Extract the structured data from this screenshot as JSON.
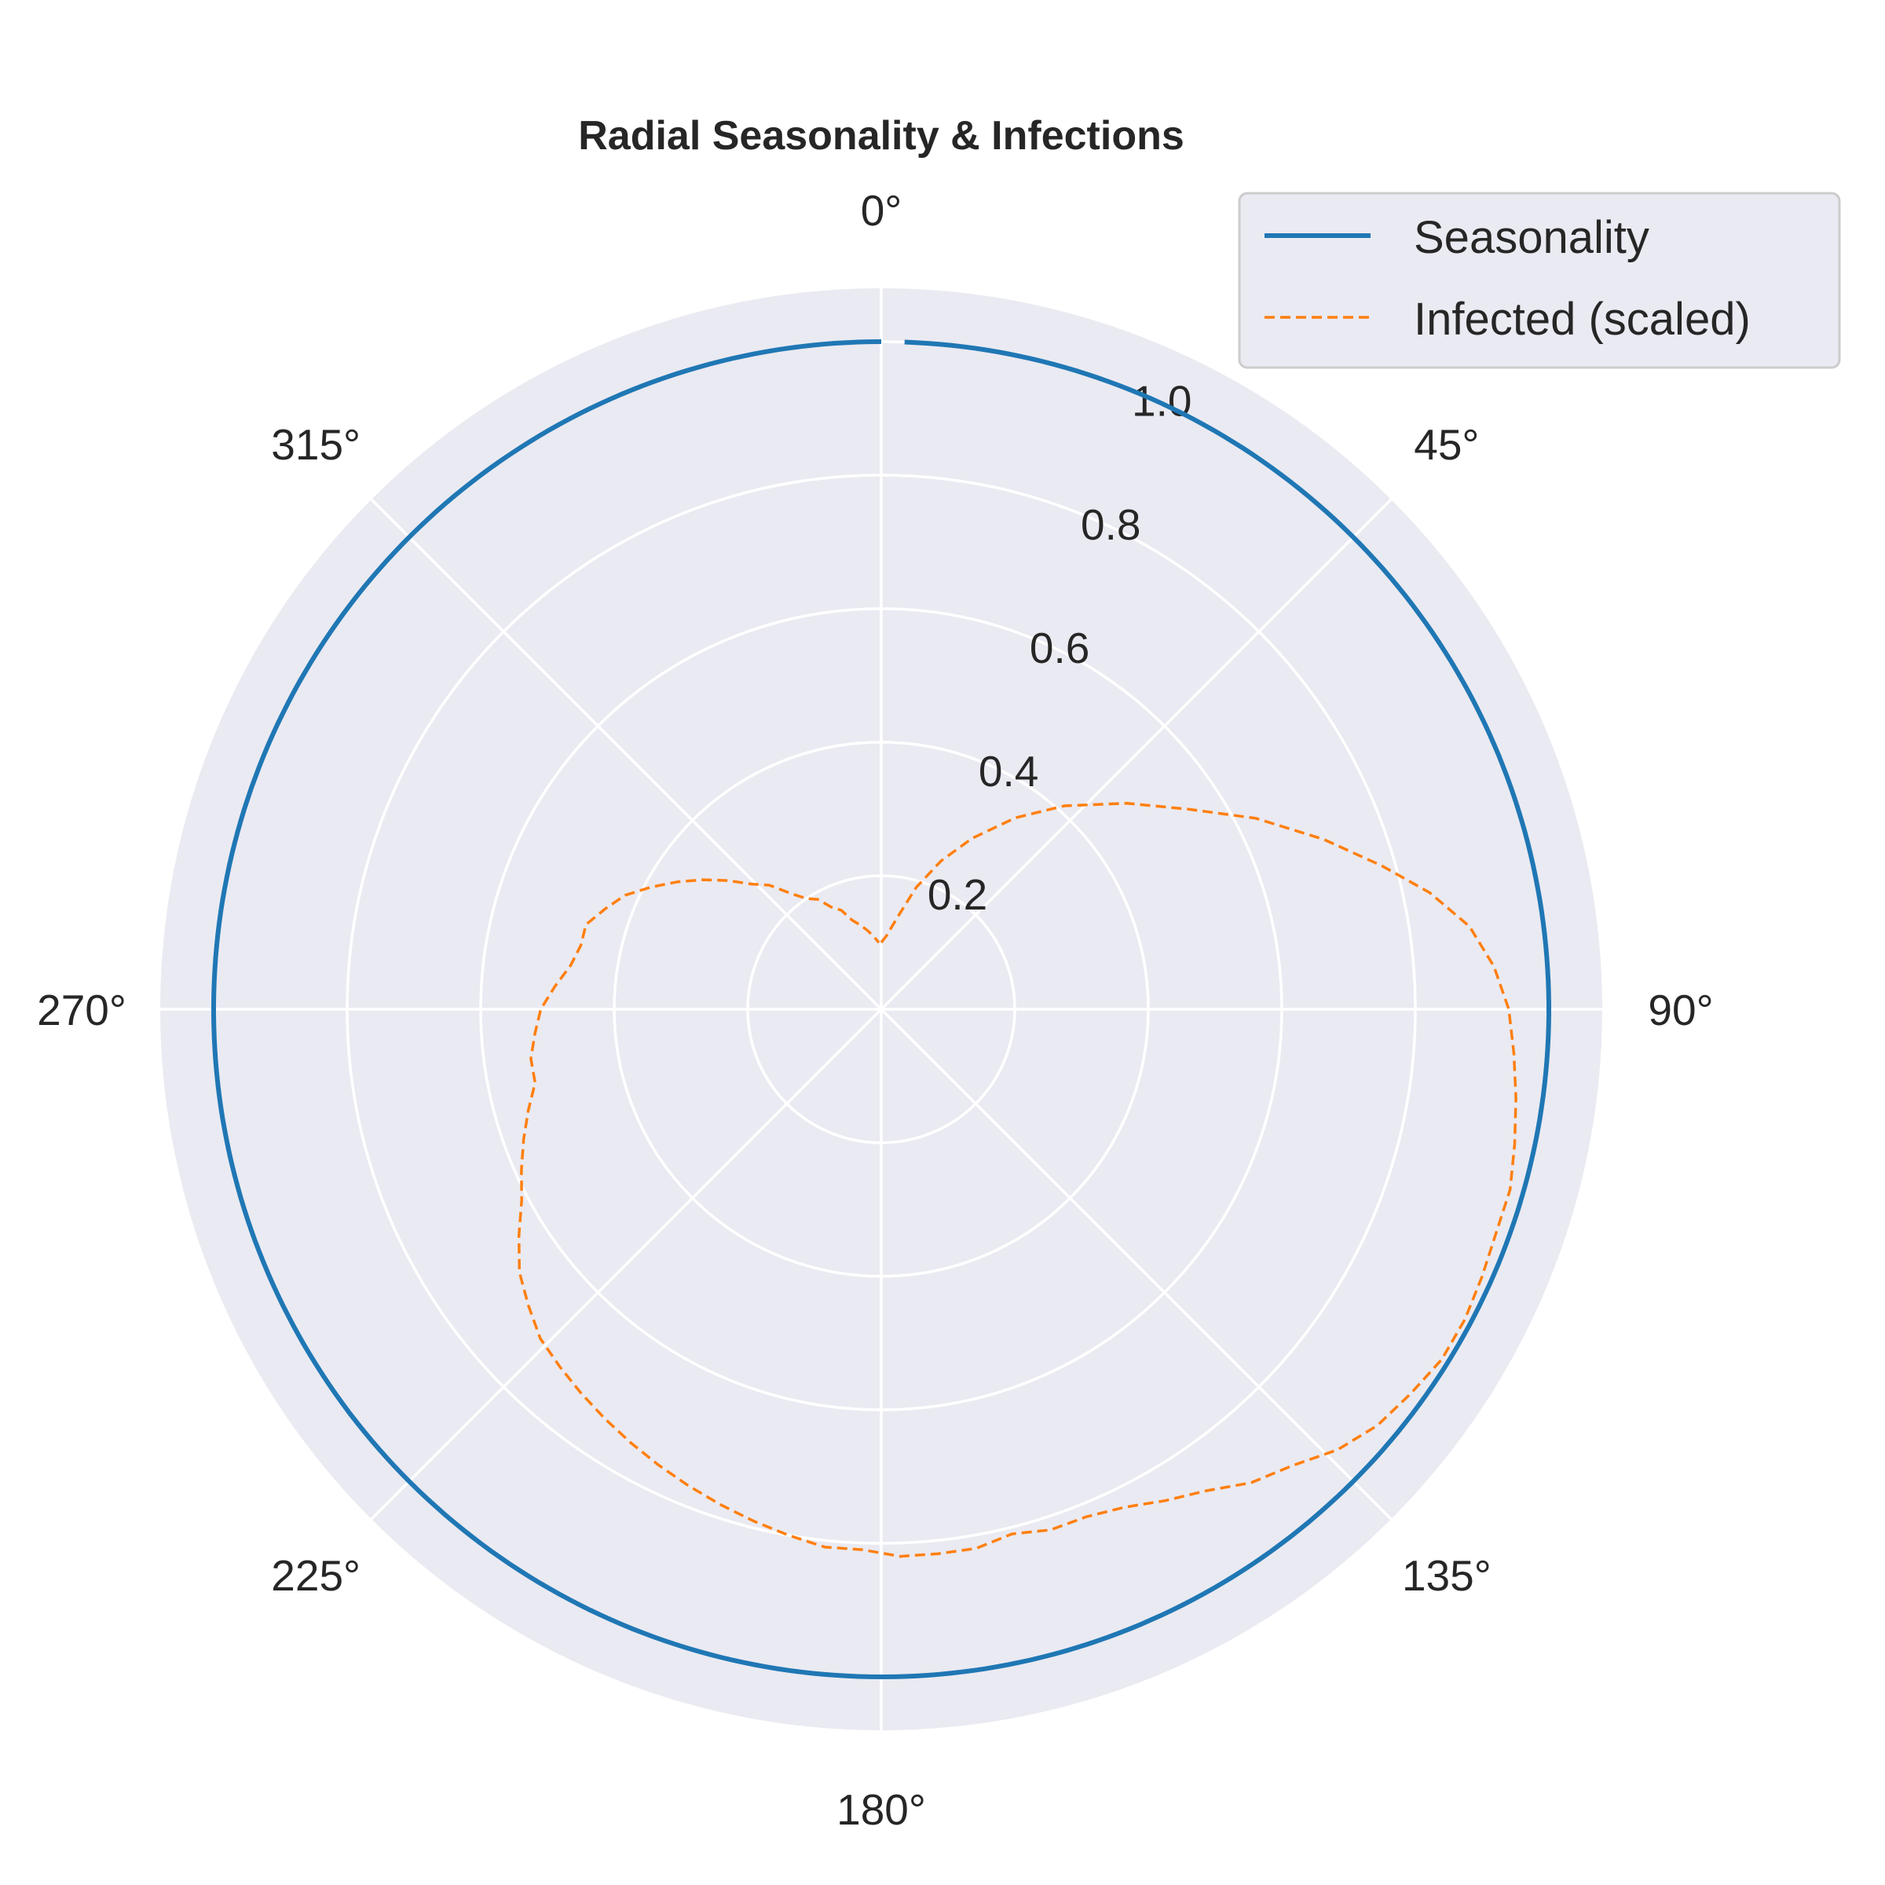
{
  "chart_data": {
    "type": "line",
    "projection": "polar",
    "title": "Radial Seasonality & Infections",
    "theta_direction": "clockwise",
    "theta_zero": "top",
    "theta_ticks": [
      "0°",
      "45°",
      "90°",
      "135°",
      "180°",
      "225°",
      "270°",
      "315°"
    ],
    "r_ticks": [
      "0.2",
      "0.4",
      "0.6",
      "0.8",
      "1.0"
    ],
    "rlim": [
      0,
      1.08
    ],
    "grid": true,
    "legend_position": "upper-right",
    "colors": {
      "seasonality": "#1f77b4",
      "infected": "#ff7f0e",
      "face": "#eaeaf2",
      "grid": "#ffffff"
    },
    "series": [
      {
        "name": "Seasonality",
        "style": "solid",
        "theta_deg": [
          2,
          360
        ],
        "r": [
          1.0,
          1.0
        ]
      },
      {
        "name": "Infected (scaled)",
        "style": "dashed",
        "theta_deg": [
          0,
          4,
          10,
          16,
          22,
          28,
          35,
          42,
          50,
          57,
          63,
          69,
          74,
          78,
          82,
          86,
          90,
          94,
          98,
          102,
          106,
          110,
          114,
          118,
          122,
          126,
          130,
          134,
          138,
          142,
          146,
          150,
          154,
          158,
          162,
          166,
          170,
          174,
          178,
          182,
          186,
          190,
          194,
          198,
          202,
          206,
          210,
          214,
          218,
          222,
          226,
          230,
          234,
          238,
          242,
          246,
          250,
          254,
          258,
          262,
          266,
          270,
          274,
          278,
          282,
          286,
          290,
          294,
          298,
          302,
          306,
          310,
          314,
          318,
          322,
          326,
          330,
          334,
          338,
          342,
          346,
          350,
          354,
          358
        ],
        "r": [
          0.1,
          0.11,
          0.14,
          0.19,
          0.24,
          0.29,
          0.35,
          0.41,
          0.48,
          0.55,
          0.63,
          0.71,
          0.78,
          0.84,
          0.89,
          0.92,
          0.94,
          0.95,
          0.96,
          0.97,
          0.98,
          0.98,
          0.985,
          0.99,
          0.99,
          0.98,
          0.97,
          0.95,
          0.92,
          0.9,
          0.87,
          0.85,
          0.83,
          0.82,
          0.82,
          0.81,
          0.82,
          0.82,
          0.82,
          0.81,
          0.81,
          0.8,
          0.79,
          0.78,
          0.77,
          0.76,
          0.75,
          0.74,
          0.73,
          0.72,
          0.71,
          0.69,
          0.67,
          0.64,
          0.61,
          0.59,
          0.57,
          0.55,
          0.53,
          0.53,
          0.52,
          0.51,
          0.49,
          0.47,
          0.46,
          0.46,
          0.44,
          0.42,
          0.39,
          0.36,
          0.33,
          0.3,
          0.27,
          0.25,
          0.22,
          0.2,
          0.19,
          0.17,
          0.16,
          0.14,
          0.13,
          0.12,
          0.11,
          0.1
        ]
      }
    ]
  }
}
